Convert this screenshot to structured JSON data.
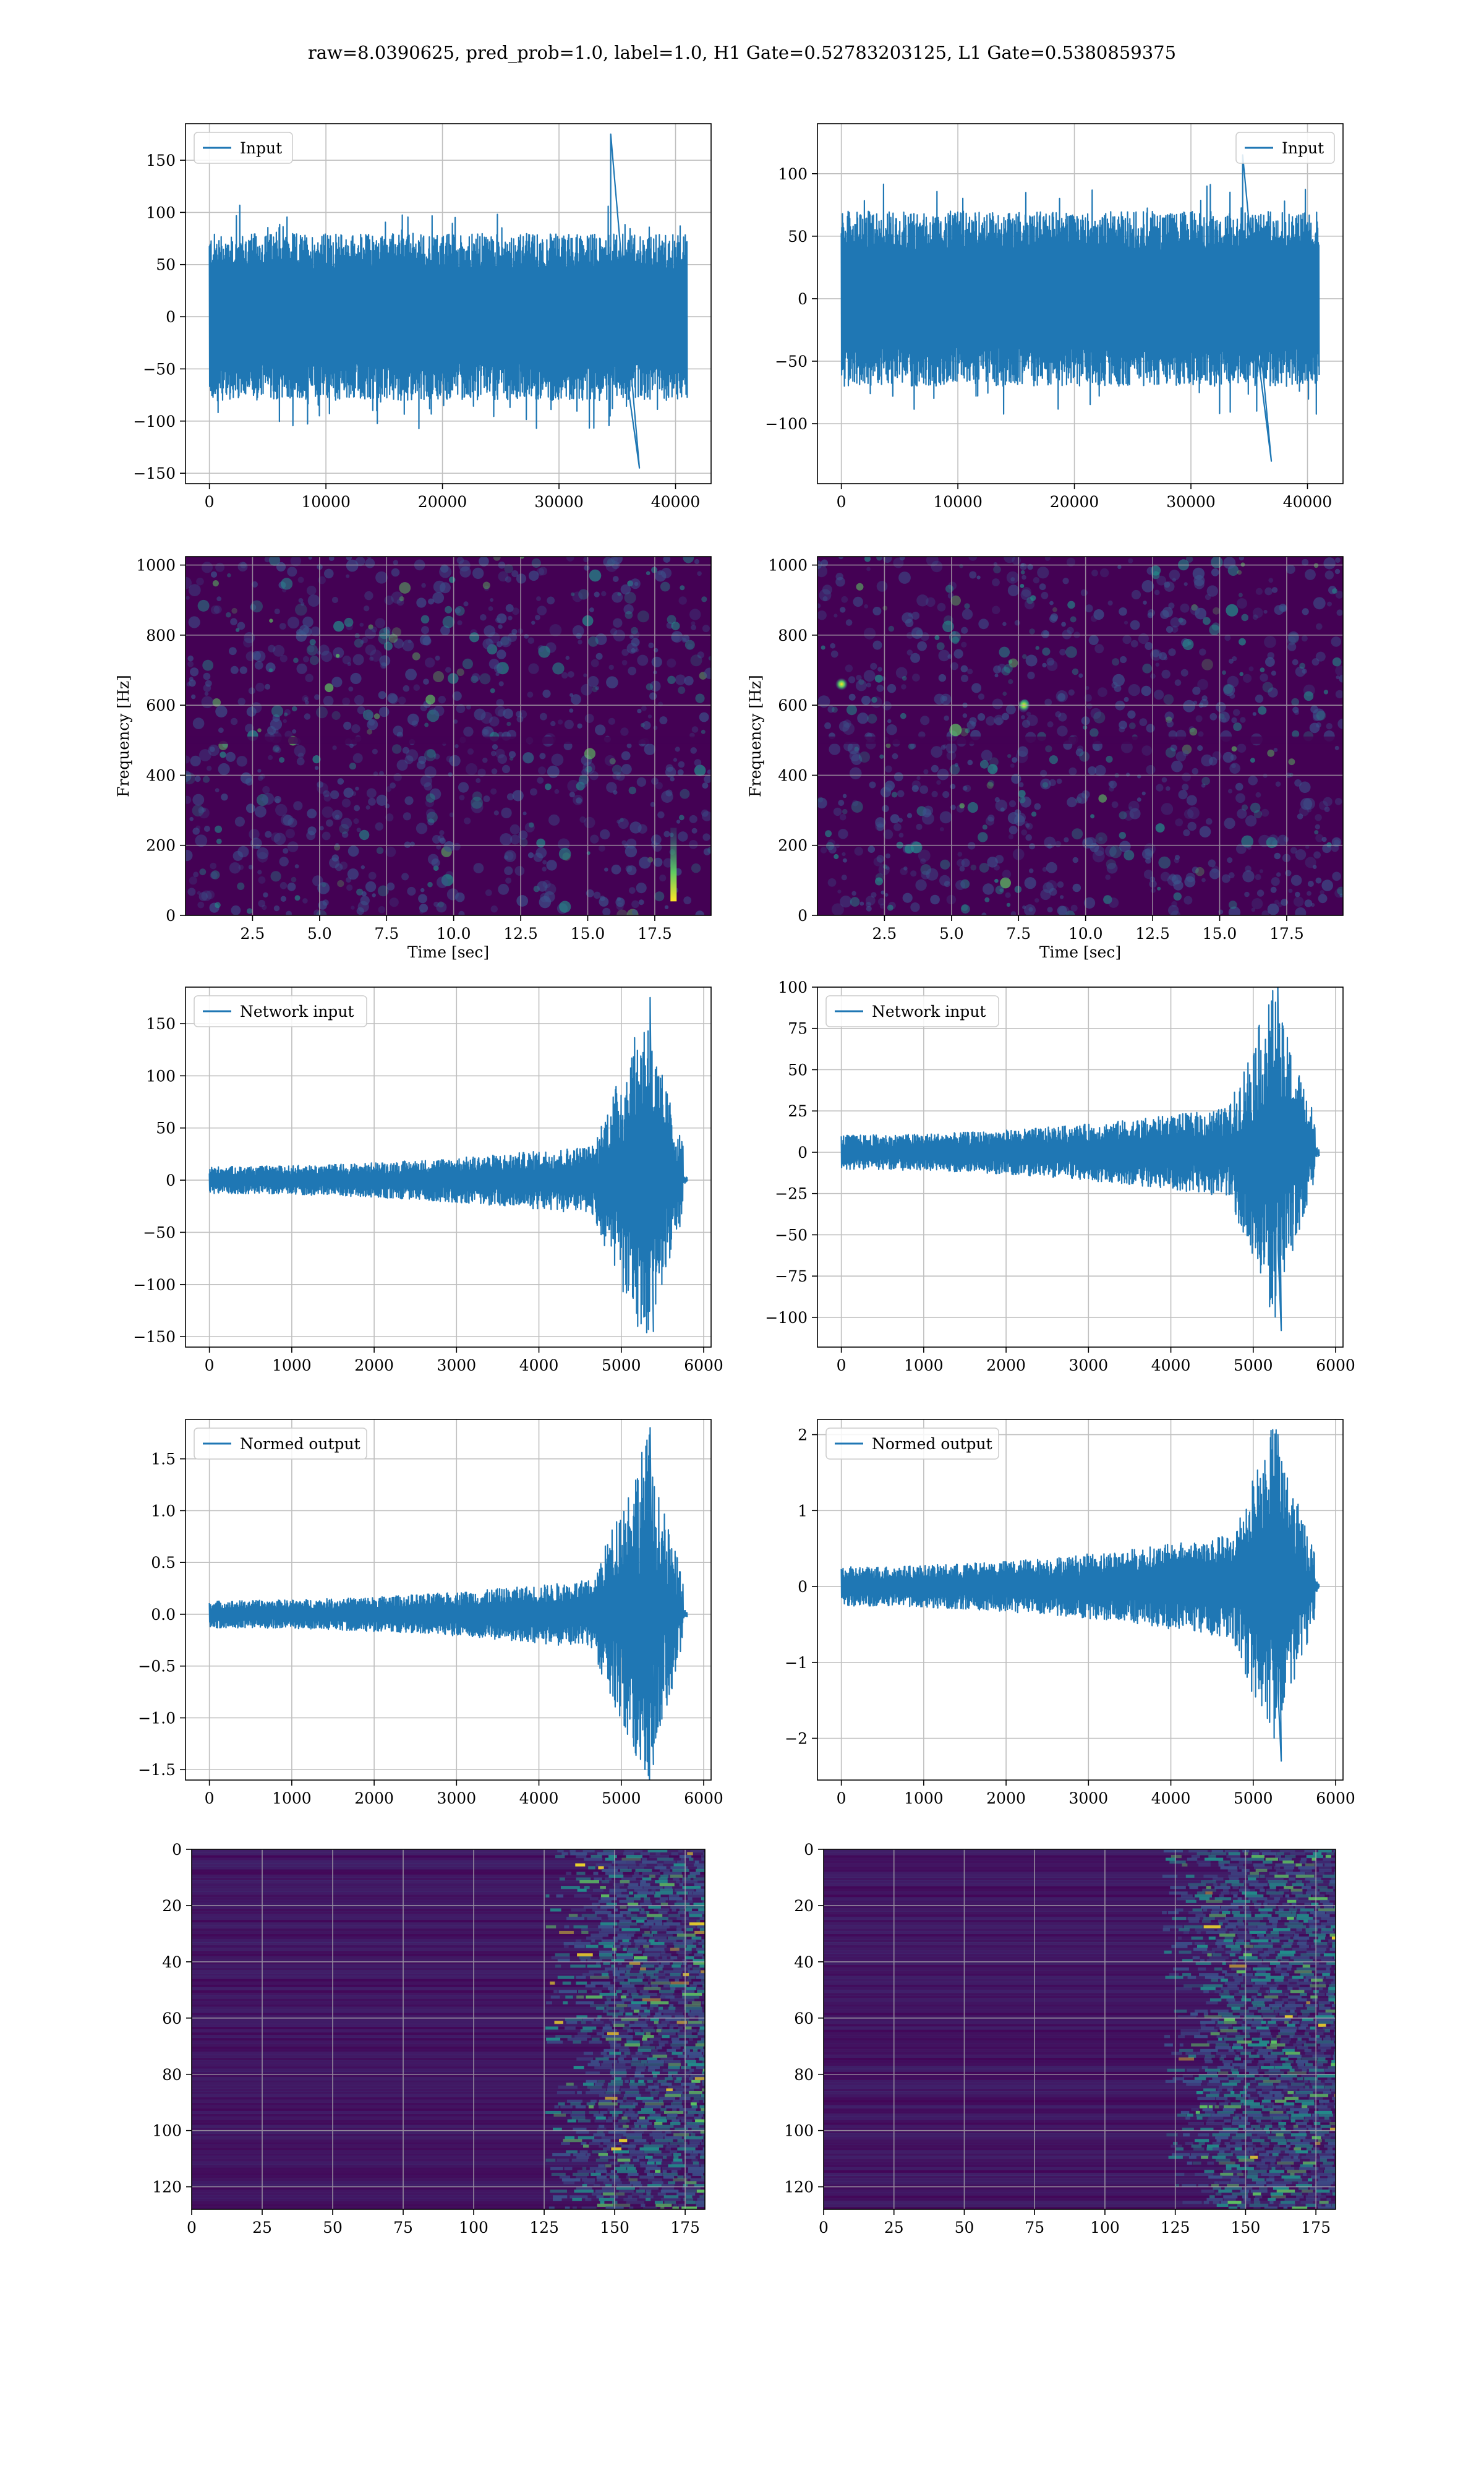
{
  "suptitle": "raw=8.0390625, pred_prob=1.0, label=1.0, H1 Gate=0.52783203125, L1 Gate=0.5380859375",
  "colors": {
    "line": "#1f77b4",
    "grid": "#b0b0b0",
    "viridis_dark": "#440154",
    "viridis_mid": "#3b528b",
    "viridis_teal": "#21918c",
    "viridis_green": "#5ec962",
    "viridis_yellow": "#fde725"
  },
  "chart_data": [
    {
      "id": "input-h1",
      "type": "line",
      "legend": [
        "Input"
      ],
      "legend_loc": "upper-left",
      "x": [
        0,
        41000
      ],
      "xlim": [
        -2050,
        43050
      ],
      "ylim": [
        -160,
        185
      ],
      "xticks": [
        0,
        10000,
        20000,
        30000,
        40000
      ],
      "yticks": [
        -150,
        -100,
        -50,
        0,
        50,
        100,
        150
      ],
      "grid": true,
      "envelope": "stationary",
      "peak_max": 175,
      "peak_min": -145,
      "amplitude": 80
    },
    {
      "id": "input-l1",
      "type": "line",
      "legend": [
        "Input"
      ],
      "legend_loc": "upper-right",
      "x": [
        0,
        41000
      ],
      "xlim": [
        -2050,
        43050
      ],
      "ylim": [
        -148,
        140
      ],
      "xticks": [
        0,
        10000,
        20000,
        30000,
        40000
      ],
      "yticks": [
        -100,
        -50,
        0,
        50,
        100
      ],
      "grid": true,
      "envelope": "stationary",
      "peak_max": 115,
      "peak_min": -130,
      "amplitude": 70
    },
    {
      "id": "spec-h1",
      "type": "heatmap",
      "xlabel": "Time [sec]",
      "ylabel": "Frequency [Hz]",
      "xlim": [
        0,
        19.6
      ],
      "ylim": [
        0,
        1024
      ],
      "xticks": [
        2.5,
        5.0,
        7.5,
        10.0,
        12.5,
        15.0,
        17.5
      ],
      "xtick_labels": [
        "2.5",
        "5.0",
        "7.5",
        "10.0",
        "12.5",
        "15.0",
        "17.5"
      ],
      "yticks": [
        0,
        200,
        400,
        600,
        800,
        1000
      ],
      "grid": true,
      "colormap": "viridis",
      "features": [
        {
          "kind": "chirp",
          "t": 18.2,
          "f_from": 40,
          "f_to": 250
        }
      ]
    },
    {
      "id": "spec-l1",
      "type": "heatmap",
      "xlabel": "Time [sec]",
      "ylabel": "Frequency [Hz]",
      "xlim": [
        0,
        19.6
      ],
      "ylim": [
        0,
        1024
      ],
      "xticks": [
        2.5,
        5.0,
        7.5,
        10.0,
        12.5,
        15.0,
        17.5
      ],
      "xtick_labels": [
        "2.5",
        "5.0",
        "7.5",
        "10.0",
        "12.5",
        "15.0",
        "17.5"
      ],
      "yticks": [
        0,
        200,
        400,
        600,
        800,
        1000
      ],
      "grid": true,
      "colormap": "viridis",
      "features": [
        {
          "kind": "hot-spot",
          "t": 7.7,
          "f": 600
        },
        {
          "kind": "hot-spot",
          "t": 0.9,
          "f": 660
        }
      ]
    },
    {
      "id": "net-h1",
      "type": "line",
      "legend": [
        "Network input"
      ],
      "legend_loc": "upper-left",
      "x": [
        0,
        5800
      ],
      "xlim": [
        -290,
        6090
      ],
      "ylim": [
        -160,
        185
      ],
      "xticks": [
        0,
        1000,
        2000,
        3000,
        4000,
        5000,
        6000
      ],
      "yticks": [
        -150,
        -100,
        -50,
        0,
        50,
        100,
        150
      ],
      "grid": true,
      "envelope": "chirp",
      "burst_start": 4700,
      "burst_peak": 5350,
      "burst_end": 5750,
      "peak_max": 175,
      "peak_min": -145,
      "baseline": 10
    },
    {
      "id": "net-l1",
      "type": "line",
      "legend": [
        "Network input"
      ],
      "legend_loc": "upper-left",
      "x": [
        0,
        5800
      ],
      "xlim": [
        -290,
        6090
      ],
      "ylim": [
        -118,
        100
      ],
      "xticks": [
        0,
        1000,
        2000,
        3000,
        4000,
        5000,
        6000
      ],
      "yticks": [
        -100,
        -75,
        -50,
        -25,
        0,
        25,
        50,
        75,
        100
      ],
      "grid": true,
      "envelope": "chirp",
      "burst_start": 4700,
      "burst_peak": 5300,
      "burst_end": 5750,
      "peak_max": 95,
      "peak_min": -108,
      "baseline": 8
    },
    {
      "id": "normed-h1",
      "type": "line",
      "legend": [
        "Normed output"
      ],
      "legend_loc": "upper-left",
      "x": [
        0,
        5800
      ],
      "xlim": [
        -290,
        6090
      ],
      "ylim": [
        -1.6,
        1.88
      ],
      "xticks": [
        0,
        1000,
        2000,
        3000,
        4000,
        5000,
        6000
      ],
      "yticks": [
        -1.5,
        -1.0,
        -0.5,
        0.0,
        0.5,
        1.0,
        1.5
      ],
      "ytick_labels": [
        "−1.5",
        "−1.0",
        "−0.5",
        "0.0",
        "0.5",
        "1.0",
        "1.5"
      ],
      "grid": true,
      "envelope": "chirp",
      "burst_start": 4700,
      "burst_peak": 5350,
      "burst_end": 5750,
      "peak_max": 1.8,
      "peak_min": -1.45,
      "baseline": 0.1
    },
    {
      "id": "normed-l1",
      "type": "line",
      "legend": [
        "Normed output"
      ],
      "legend_loc": "upper-left",
      "x": [
        0,
        5800
      ],
      "xlim": [
        -290,
        6090
      ],
      "ylim": [
        -2.55,
        2.2
      ],
      "xticks": [
        0,
        1000,
        2000,
        3000,
        4000,
        5000,
        6000
      ],
      "yticks": [
        -2,
        -1,
        0,
        1,
        2
      ],
      "grid": true,
      "envelope": "chirp",
      "burst_start": 4700,
      "burst_peak": 5300,
      "burst_end": 5750,
      "peak_max": 2.0,
      "peak_min": -2.3,
      "baseline": 0.2
    },
    {
      "id": "feat-h1",
      "type": "heatmap",
      "xlim": [
        0,
        182
      ],
      "ylim": [
        128,
        0
      ],
      "xticks": [
        0,
        25,
        50,
        75,
        100,
        125,
        150,
        175
      ],
      "yticks": [
        0,
        20,
        40,
        60,
        80,
        100,
        120
      ],
      "grid": true,
      "colormap": "viridis",
      "active_from": 125
    },
    {
      "id": "feat-l1",
      "type": "heatmap",
      "xlim": [
        0,
        182
      ],
      "ylim": [
        128,
        0
      ],
      "xticks": [
        0,
        25,
        50,
        75,
        100,
        125,
        150,
        175
      ],
      "yticks": [
        0,
        20,
        40,
        60,
        80,
        100,
        120
      ],
      "grid": true,
      "colormap": "viridis",
      "active_from": 120
    }
  ]
}
